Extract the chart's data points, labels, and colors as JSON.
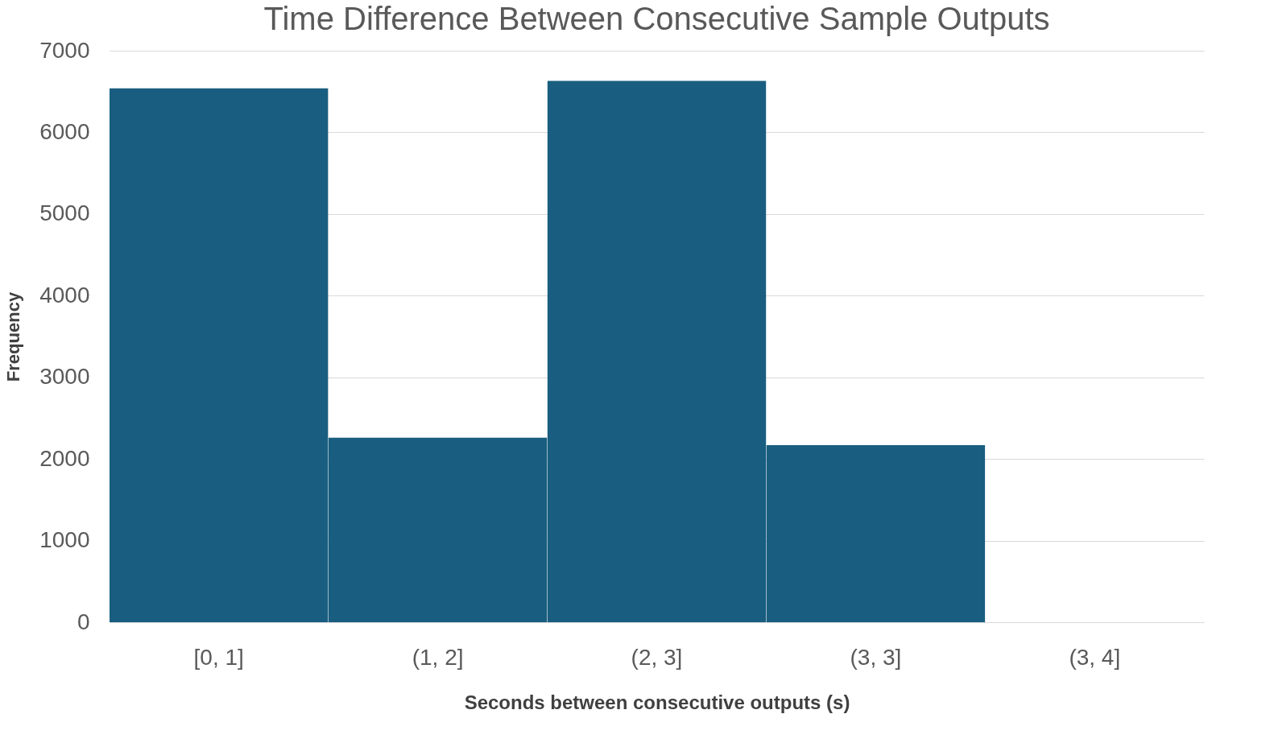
{
  "chart_data": {
    "type": "bar",
    "title": "Time Difference Between Consecutive Sample Outputs",
    "xlabel": "Seconds between consecutive outputs (s)",
    "ylabel": "Frequency",
    "categories": [
      "[0, 1]",
      "(1, 2]",
      "(2, 3]",
      "(3, 3]",
      "(3, 4]"
    ],
    "values": [
      6540,
      2260,
      6630,
      2170,
      0
    ],
    "color": "#195e80",
    "ylim": [
      0,
      7000
    ],
    "yticks": [
      0,
      1000,
      2000,
      3000,
      4000,
      5000,
      6000,
      7000
    ],
    "grid": "y"
  }
}
